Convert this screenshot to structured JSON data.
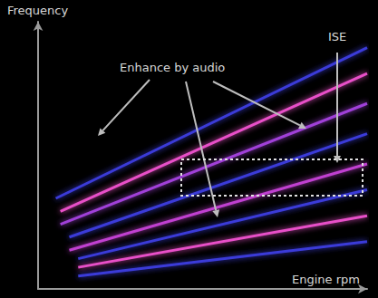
{
  "chart_data": {
    "type": "line",
    "x_label": "Engine rpm",
    "y_label": "Frequency",
    "xlim": [
      0,
      100
    ],
    "ylim": [
      0,
      100
    ],
    "tick_labels": false,
    "grid": false,
    "series": [
      {
        "color": "#3b3bd8",
        "x": [
          12.2,
          100
        ],
        "values": [
          4.8,
          17.7
        ]
      },
      {
        "color": "#e84fc8",
        "x": [
          12.2,
          100
        ],
        "values": [
          8.1,
          27.4
        ]
      },
      {
        "color": "#3b3bd8",
        "x": [
          12.2,
          100
        ],
        "values": [
          11.3,
          37.1
        ]
      },
      {
        "color": "#c040d0",
        "x": [
          9.5,
          100
        ],
        "values": [
          14.5,
          46.8
        ]
      },
      {
        "color": "#3b3bd8",
        "x": [
          9.5,
          100
        ],
        "values": [
          19.4,
          58.1
        ]
      },
      {
        "color": "#a040d8",
        "x": [
          6.8,
          100
        ],
        "values": [
          24.2,
          69.4
        ]
      },
      {
        "color": "#e84fc8",
        "x": [
          6.8,
          100
        ],
        "values": [
          29.0,
          80.6
        ]
      },
      {
        "color": "#3b3bd8",
        "x": [
          5.4,
          100
        ],
        "values": [
          33.9,
          90.3
        ]
      }
    ],
    "annotations": [
      "Enhance by audio",
      "ISE"
    ]
  }
}
